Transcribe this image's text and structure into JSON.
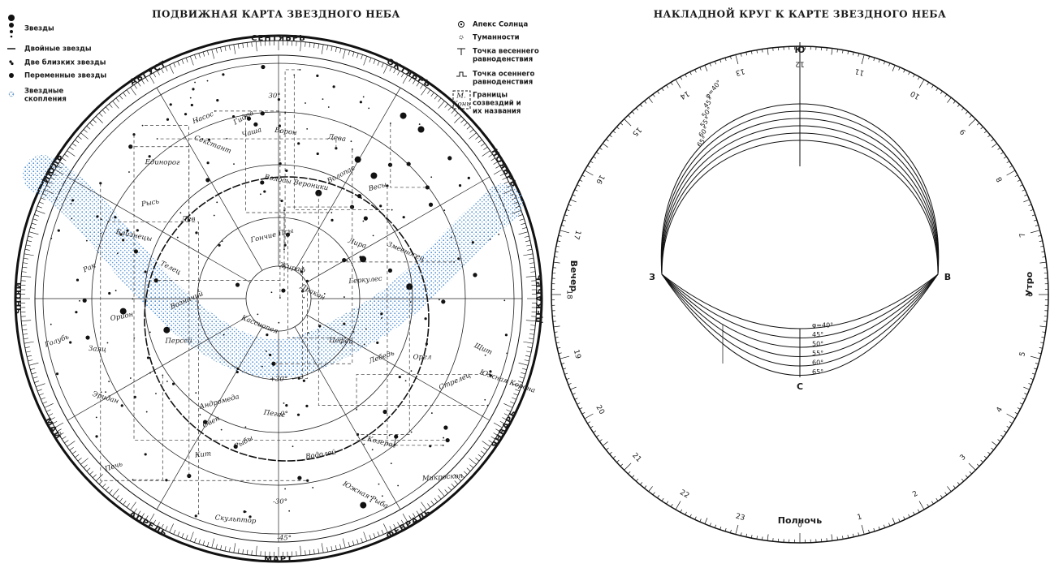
{
  "left_map": {
    "title": "ПОДВИЖНАЯ КАРТА ЗВЕЗДНОГО НЕБА",
    "legend_left": [
      [
        "Звезды"
      ],
      [
        "Двойные звезды"
      ],
      [
        "Две близких звезды"
      ],
      [
        "Переменные звезды"
      ],
      [
        "Звездные",
        "скопления"
      ]
    ],
    "legend_right": [
      [
        "Апекс Солнца"
      ],
      [
        "Туманности"
      ],
      [
        "Точка весеннего",
        "равноденствия"
      ],
      [
        "Точка осеннего",
        "равноденствия"
      ],
      [
        "Границы",
        "созвездий и",
        "их названия"
      ]
    ],
    "legend_sample": [
      "М.",
      "Конь"
    ],
    "months": [
      "СЕНТЯБРЬ",
      "ОКТЯБРЬ",
      "НОЯБРЬ",
      "ДЕКАБРЬ",
      "ЯНВАРЬ",
      "ФЕВРАЛЬ",
      "МАРТ",
      "АПРЕЛЬ",
      "МАЙ",
      "ИЮНЬ",
      "ИЮЛЬ",
      "АВГУСТ"
    ],
    "declinations": [
      "30°",
      "+30°",
      "0°",
      "-30°",
      "-45°"
    ],
    "constellations": [
      "Гидра",
      "Ворон",
      "Чаша",
      "Секстант",
      "Лев",
      "Рак",
      "Близнецы",
      "Орион",
      "Телец",
      "Заяц",
      "Голубь",
      "Эридан",
      "Кит",
      "Рыбы",
      "Пегас",
      "Андромеда",
      "Кассиопея",
      "Персей",
      "Возничий",
      "Жираф",
      "Рысь",
      "Дракон",
      "Цефей",
      "Лебедь",
      "Лира",
      "Геркулес",
      "Волопас",
      "Дева",
      "Весы",
      "Змееносец",
      "Орел",
      "Стрелец",
      "Козерог",
      "Водолей",
      "Южная Рыба",
      "Скульптор",
      "Печь",
      "Южная Корона",
      "Микроскоп",
      "Овен",
      "Волосы Вероники",
      "Гончие Псы",
      "Щит",
      "Единорог",
      "Насос"
    ]
  },
  "overlay": {
    "title": "НАКЛАДНОЙ КРУГ К КАРТЕ ЗВЕЗДНОГО НЕБА",
    "hours": [
      "0",
      "1",
      "2",
      "3",
      "4",
      "5",
      "6",
      "7",
      "8",
      "9",
      "10",
      "11",
      "12",
      "13",
      "14",
      "15",
      "16",
      "17",
      "18",
      "19",
      "20",
      "21",
      "22",
      "23"
    ],
    "south": "Ю",
    "north": "С",
    "west": "З",
    "east": "В",
    "evening": "Вечер",
    "morning": "Утро",
    "midnight": "Полночь",
    "latitudes": [
      "φ=40°",
      "45°",
      "50°",
      "55°",
      "60°",
      "65°"
    ]
  }
}
